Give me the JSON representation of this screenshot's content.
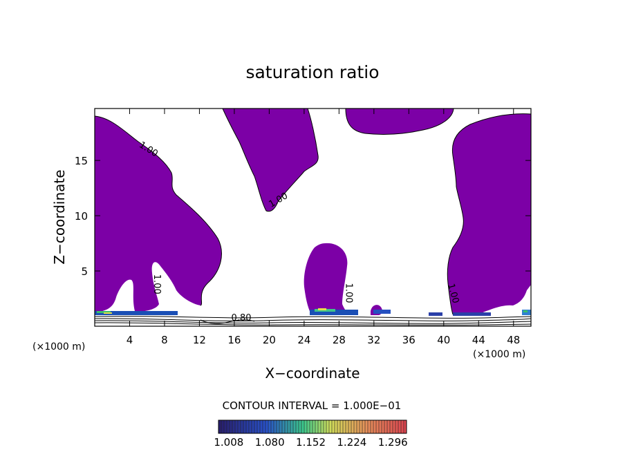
{
  "chart_data": {
    "type": "heatmap",
    "title": "saturation ratio",
    "xlabel": "X−coordinate",
    "ylabel": "Z−coordinate",
    "x_unit": "(×1000 m)",
    "x_unit_right": "(×1000 m)",
    "xlim": [
      0,
      50
    ],
    "ylim": [
      0,
      19.7
    ],
    "x_ticks": [
      4,
      8,
      12,
      16,
      20,
      24,
      28,
      32,
      36,
      40,
      44,
      48
    ],
    "y_ticks": [
      5,
      10,
      15
    ],
    "contour_interval_text": "CONTOUR INTERVAL = 1.000E−01",
    "contour_labels": [
      {
        "text": "1.00",
        "x": 6.0,
        "y": 15.8,
        "angle": 32
      },
      {
        "text": "1.00",
        "x": 21.2,
        "y": 11.2,
        "angle": -30
      },
      {
        "text": "1.00",
        "x": 6.8,
        "y": 3.8,
        "angle": 90
      },
      {
        "text": "1.00",
        "x": 28.8,
        "y": 3.0,
        "angle": 90
      },
      {
        "text": "1.00",
        "x": 40.8,
        "y": 2.9,
        "angle": 75
      },
      {
        "text": "0.80",
        "x": 16.8,
        "y": 0.5,
        "angle": 0
      }
    ],
    "supersaturated_fill_color": "#7c00a6",
    "colorbar": {
      "labels": [
        "1.008",
        "1.080",
        "1.152",
        "1.224",
        "1.296"
      ],
      "min": 0.99,
      "max": 1.32
    },
    "grid": false
  }
}
